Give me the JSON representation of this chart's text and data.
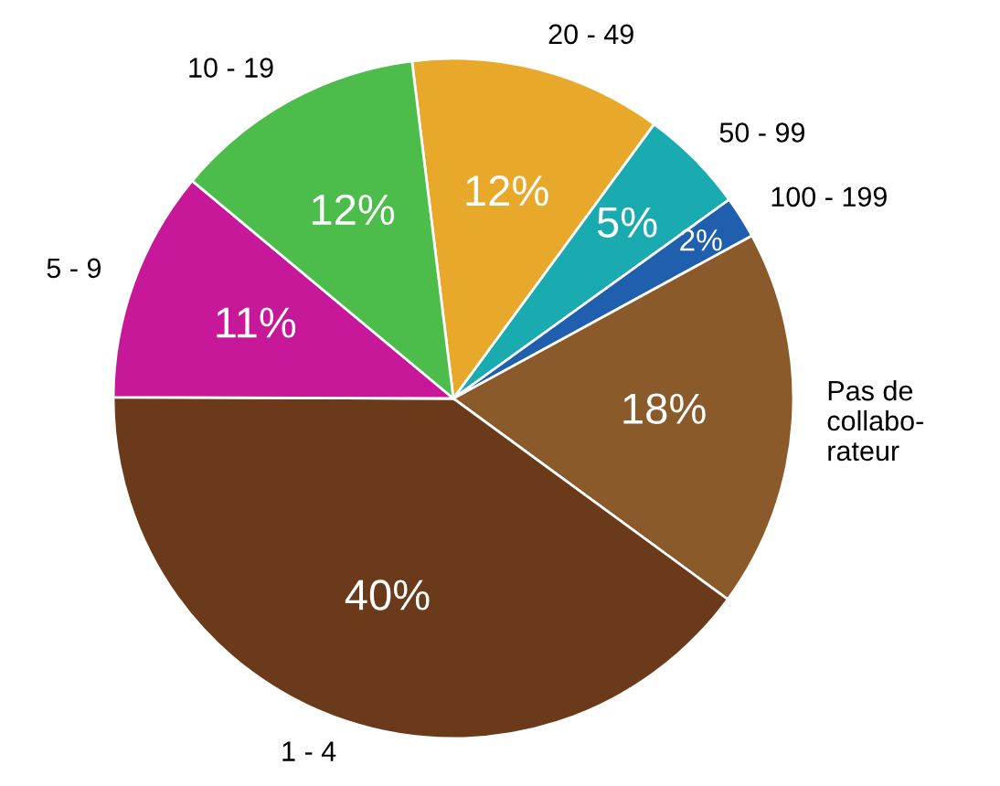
{
  "chart_data": {
    "type": "pie",
    "categories": [
      "20 - 49",
      "50 - 99",
      "100 - 199",
      "Pas de\ncollabo-\nrateur",
      "1 - 4",
      "5 - 9",
      "10 - 19"
    ],
    "values": [
      12,
      5,
      2,
      18,
      40,
      11,
      12
    ],
    "value_labels": [
      "12%",
      "5%",
      "2%",
      "18%",
      "40%",
      "11%",
      "12%"
    ],
    "colors": [
      "#e8a92a",
      "#1aabb0",
      "#1f5fae",
      "#8b5a2b",
      "#6b3a1a",
      "#c8189a",
      "#4cbc4a"
    ],
    "legend": false
  }
}
